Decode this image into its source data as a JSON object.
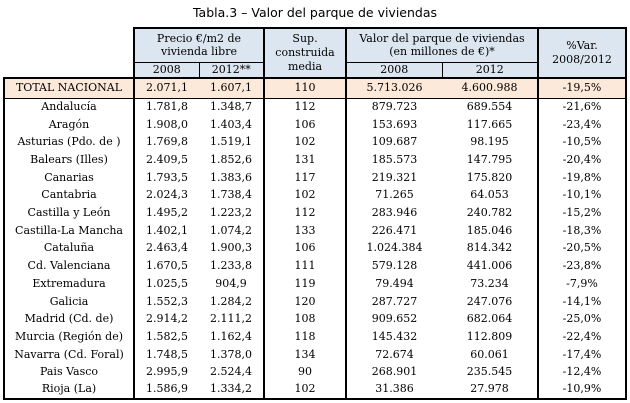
{
  "title": "Tabla.3 – Valor del parque de viviendas",
  "colors": {
    "header_bg": "#dce6f1",
    "total_bg": "#fde9d9",
    "border": "#000000",
    "text": "#000000",
    "page_bg": "#ffffff"
  },
  "table": {
    "col_groups": {
      "precio": {
        "label": "Precio €/m2 de vivienda libre",
        "sub": [
          "2008",
          "2012**"
        ]
      },
      "sup": {
        "label": "Sup. construida media"
      },
      "valor": {
        "label": "Valor del parque de viviendas (en millones de €)*",
        "sub": [
          "2008",
          "2012"
        ]
      },
      "pct_var": {
        "label": "%Var. 2008/2012"
      }
    },
    "total_row": {
      "region": "TOTAL NACIONAL",
      "values": [
        "2.071,1",
        "1.607,1",
        "110",
        "5.713.026",
        "4.600.988",
        "-19,5%"
      ]
    },
    "rows": [
      {
        "region": "Andalucía",
        "values": [
          "1.781,8",
          "1.348,7",
          "112",
          "879.723",
          "689.554",
          "-21,6%"
        ]
      },
      {
        "region": "Aragón",
        "values": [
          "1.908,0",
          "1.403,4",
          "106",
          "153.693",
          "117.665",
          "-23,4%"
        ]
      },
      {
        "region": "Asturias (Pdo. de )",
        "values": [
          "1.769,8",
          "1.519,1",
          "102",
          "109.687",
          "98.195",
          "-10,5%"
        ]
      },
      {
        "region": "Balears (Illes)",
        "values": [
          "2.409,5",
          "1.852,6",
          "131",
          "185.573",
          "147.795",
          "-20,4%"
        ]
      },
      {
        "region": "Canarias",
        "values": [
          "1.793,5",
          "1.383,6",
          "117",
          "219.321",
          "175.820",
          "-19,8%"
        ]
      },
      {
        "region": "Cantabria",
        "values": [
          "2.024,3",
          "1.738,4",
          "102",
          "71.265",
          "64.053",
          "-10,1%"
        ]
      },
      {
        "region": "Castilla y León",
        "values": [
          "1.495,2",
          "1.223,2",
          "112",
          "283.946",
          "240.782",
          "-15,2%"
        ]
      },
      {
        "region": "Castilla-La Mancha",
        "values": [
          "1.402,1",
          "1.074,2",
          "133",
          "226.471",
          "185.046",
          "-18,3%"
        ]
      },
      {
        "region": "Cataluña",
        "values": [
          "2.463,4",
          "1.900,3",
          "106",
          "1.024.384",
          "814.342",
          "-20,5%"
        ]
      },
      {
        "region": "Cd. Valenciana",
        "values": [
          "1.670,5",
          "1.233,8",
          "111",
          "579.128",
          "441.006",
          "-23,8%"
        ]
      },
      {
        "region": "Extremadura",
        "values": [
          "1.025,5",
          "904,9",
          "119",
          "79.494",
          "73.234",
          "-7,9%"
        ]
      },
      {
        "region": "Galicia",
        "values": [
          "1.552,3",
          "1.284,2",
          "120",
          "287.727",
          "247.076",
          "-14,1%"
        ]
      },
      {
        "region": "Madrid (Cd. de)",
        "values": [
          "2.914,2",
          "2.111,2",
          "108",
          "909.652",
          "682.064",
          "-25,0%"
        ]
      },
      {
        "region": "Murcia (Región de)",
        "values": [
          "1.582,5",
          "1.162,4",
          "118",
          "145.432",
          "112.809",
          "-22,4%"
        ]
      },
      {
        "region": "Navarra (Cd. Foral)",
        "values": [
          "1.748,5",
          "1.378,0",
          "134",
          "72.674",
          "60.061",
          "-17,4%"
        ]
      },
      {
        "region": "Pais Vasco",
        "values": [
          "2.995,9",
          "2.524,4",
          "90",
          "268.901",
          "235.545",
          "-12,4%"
        ]
      },
      {
        "region": "Rioja (La)",
        "values": [
          "1.586,9",
          "1.334,2",
          "102",
          "31.386",
          "27.978",
          "-10,9%"
        ]
      }
    ]
  }
}
